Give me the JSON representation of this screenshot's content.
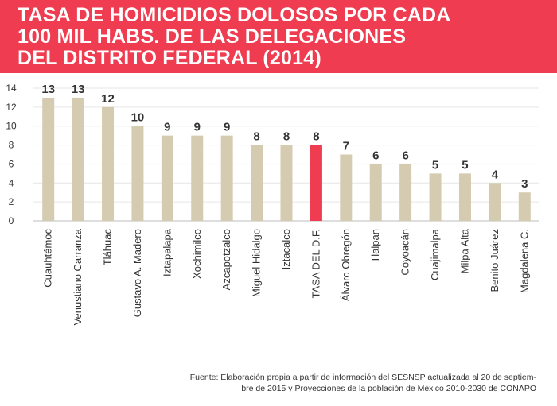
{
  "title": {
    "lines": [
      "TASA DE HOMICIDIOS DOLOSOS POR CADA",
      "100 MIL HABS. DE LAS DELEGACIONES",
      "DEL DISTRITO FEDERAL (2014)"
    ]
  },
  "colors": {
    "title_bg": "#f03c50",
    "bar": "#d4cbb0",
    "highlight": "#f03c50",
    "grid": "#e6e6e6",
    "text": "#333333"
  },
  "chart_data": {
    "type": "bar",
    "title": "TASA DE HOMICIDIOS DOLOSOS POR CADA 100 MIL HABS. DE LAS DELEGACIONES DEL DISTRITO FEDERAL (2014)",
    "xlabel": "",
    "ylabel": "",
    "ylim": [
      0,
      14
    ],
    "yticks": [
      0,
      2,
      4,
      6,
      8,
      10,
      12,
      14
    ],
    "grid": true,
    "categories": [
      "Cuauhtémoc",
      "Venustiano Carranza",
      "Tláhuac",
      "Gustavo A. Madero",
      "Iztapalapa",
      "Xochimilco",
      "Azcapotzalco",
      "Miguel Hidalgo",
      "Iztacalco",
      "TASA DEL D.F.",
      "Álvaro Obregón",
      "Tlalpan",
      "Coyoacán",
      "Cuajimalpa",
      "Milpa Alta",
      "Benito Juárez",
      "Magdalena C."
    ],
    "values": [
      13,
      13,
      12,
      10,
      9,
      9,
      9,
      8,
      8,
      8,
      7,
      6,
      6,
      5,
      5,
      4,
      3
    ],
    "labels": [
      "13",
      "13",
      "12",
      "10",
      "9",
      "9",
      "9",
      "8",
      "8",
      "8",
      "7",
      "6",
      "6",
      "5",
      "5",
      "4",
      "3"
    ],
    "highlight_index": 9
  },
  "source": {
    "line1": "Fuente: Elaboración propia a partir de información del SESNSP actualizada al 20 de septiem-",
    "line2": "bre de 2015 y Proyecciones de la población de México 2010-2030 de CONAPO"
  }
}
